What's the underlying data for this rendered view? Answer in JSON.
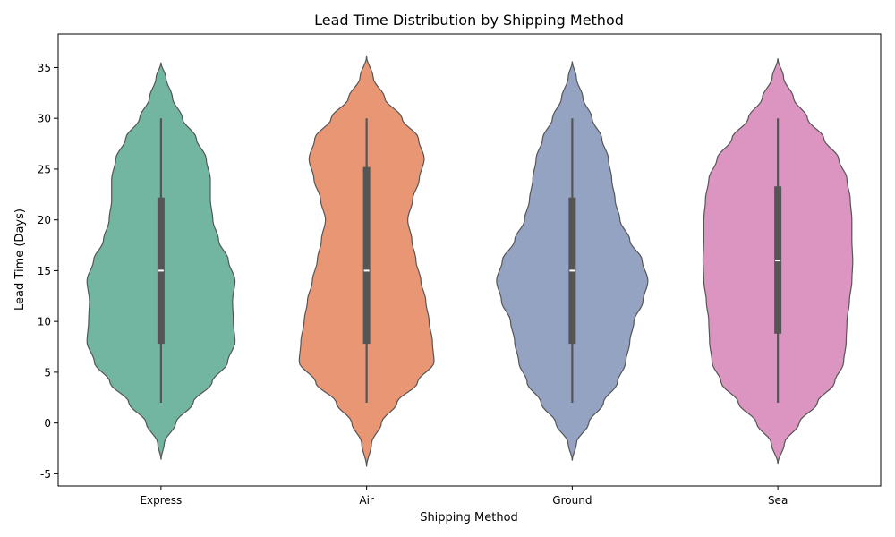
{
  "chart_data": {
    "type": "violin",
    "title": "Lead Time Distribution by Shipping Method",
    "xlabel": "Shipping Method",
    "ylabel": "Lead Time (Days)",
    "ylim": [
      -6.2,
      38.3
    ],
    "yticks": [
      -5,
      0,
      5,
      10,
      15,
      20,
      25,
      30,
      35
    ],
    "grid": false,
    "categories": [
      "Express",
      "Air",
      "Ground",
      "Sea"
    ],
    "colors": [
      "#72b6a1",
      "#e99675",
      "#95a3c3",
      "#db95c0"
    ],
    "series": [
      {
        "category": "Express",
        "min": 2,
        "q1": 7.8,
        "median": 15,
        "q3": 22.2,
        "max": 30,
        "violin_range": [
          -3.6,
          35.5
        ],
        "density_profile": [
          [
            -3.6,
            0.0
          ],
          [
            -2,
            0.04
          ],
          [
            0,
            0.18
          ],
          [
            2,
            0.39
          ],
          [
            4,
            0.62
          ],
          [
            6,
            0.81
          ],
          [
            8,
            0.9
          ],
          [
            10,
            0.88
          ],
          [
            12,
            0.87
          ],
          [
            14,
            0.9
          ],
          [
            16,
            0.82
          ],
          [
            18,
            0.7
          ],
          [
            20,
            0.63
          ],
          [
            22,
            0.6
          ],
          [
            24,
            0.6
          ],
          [
            26,
            0.55
          ],
          [
            28,
            0.43
          ],
          [
            30,
            0.26
          ],
          [
            32,
            0.14
          ],
          [
            34,
            0.06
          ],
          [
            35.5,
            0.0
          ]
        ]
      },
      {
        "category": "Air",
        "min": 2,
        "q1": 7.8,
        "median": 15,
        "q3": 25.2,
        "max": 30,
        "violin_range": [
          -4.3,
          36.1
        ],
        "density_profile": [
          [
            -4.3,
            0.0
          ],
          [
            -2,
            0.06
          ],
          [
            0,
            0.18
          ],
          [
            2,
            0.37
          ],
          [
            4,
            0.62
          ],
          [
            6,
            0.82
          ],
          [
            8,
            0.8
          ],
          [
            10,
            0.76
          ],
          [
            12,
            0.72
          ],
          [
            14,
            0.66
          ],
          [
            16,
            0.6
          ],
          [
            18,
            0.55
          ],
          [
            20,
            0.5
          ],
          [
            22,
            0.56
          ],
          [
            24,
            0.64
          ],
          [
            26,
            0.7
          ],
          [
            28,
            0.63
          ],
          [
            30,
            0.43
          ],
          [
            32,
            0.22
          ],
          [
            34,
            0.08
          ],
          [
            36.1,
            0.0
          ]
        ]
      },
      {
        "category": "Ground",
        "min": 2,
        "q1": 7.8,
        "median": 15,
        "q3": 22.2,
        "max": 30,
        "violin_range": [
          -3.7,
          35.6
        ],
        "density_profile": [
          [
            -3.7,
            0.0
          ],
          [
            -2,
            0.05
          ],
          [
            0,
            0.2
          ],
          [
            2,
            0.38
          ],
          [
            4,
            0.55
          ],
          [
            6,
            0.65
          ],
          [
            8,
            0.7
          ],
          [
            10,
            0.75
          ],
          [
            12,
            0.86
          ],
          [
            14,
            0.92
          ],
          [
            16,
            0.85
          ],
          [
            18,
            0.7
          ],
          [
            20,
            0.58
          ],
          [
            22,
            0.52
          ],
          [
            24,
            0.48
          ],
          [
            26,
            0.44
          ],
          [
            28,
            0.36
          ],
          [
            30,
            0.24
          ],
          [
            32,
            0.13
          ],
          [
            34,
            0.05
          ],
          [
            35.6,
            0.0
          ]
        ]
      },
      {
        "category": "Sea",
        "min": 2,
        "q1": 8.8,
        "median": 16,
        "q3": 23.3,
        "max": 30,
        "violin_range": [
          -4.0,
          35.9
        ],
        "density_profile": [
          [
            -4.0,
            0.0
          ],
          [
            -2,
            0.08
          ],
          [
            0,
            0.26
          ],
          [
            2,
            0.48
          ],
          [
            4,
            0.69
          ],
          [
            6,
            0.8
          ],
          [
            8,
            0.83
          ],
          [
            10,
            0.84
          ],
          [
            12,
            0.87
          ],
          [
            14,
            0.9
          ],
          [
            16,
            0.91
          ],
          [
            18,
            0.9
          ],
          [
            20,
            0.9
          ],
          [
            22,
            0.88
          ],
          [
            24,
            0.84
          ],
          [
            26,
            0.74
          ],
          [
            28,
            0.56
          ],
          [
            30,
            0.36
          ],
          [
            32,
            0.19
          ],
          [
            34,
            0.07
          ],
          [
            35.9,
            0.0
          ]
        ]
      }
    ]
  }
}
